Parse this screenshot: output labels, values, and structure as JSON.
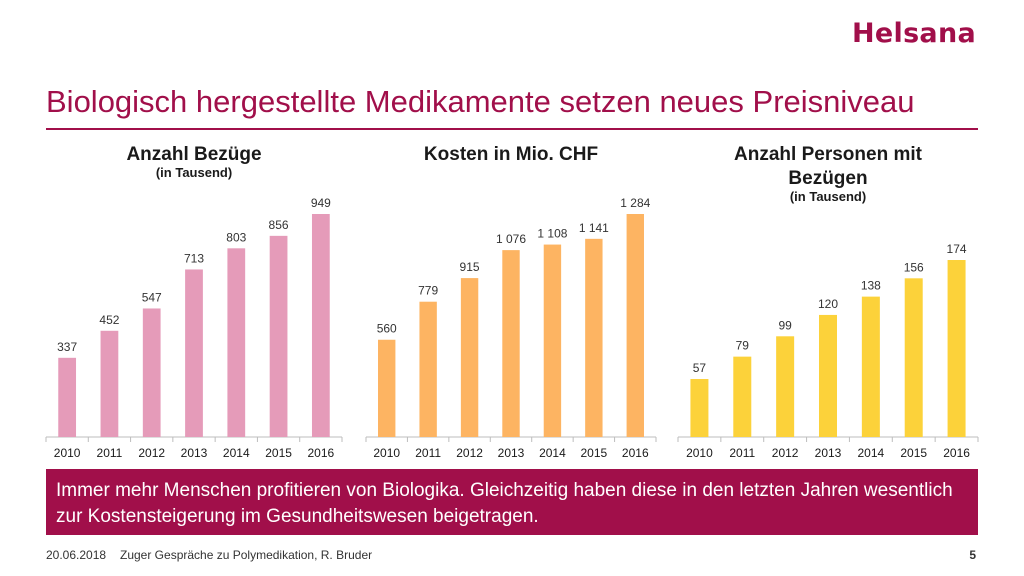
{
  "brand": {
    "logo_text": "Helsana"
  },
  "slide": {
    "title": "Biologisch hergestellte Medikamente setzen neues Preisniveau",
    "message": "Immer mehr Menschen profitieren von Biologika. Gleichzeitig haben diese in den letzten Jahren wesentlich zur Kostensteigerung im Gesundheitswesen beigetragen.",
    "footer": {
      "date": "20.06.2018",
      "text": "Zuger Gespräche zu Polymedikation, R. Bruder",
      "page": "5"
    }
  },
  "colors": {
    "accent": "#a10f4a",
    "pink": "#e59bb9",
    "orange": "#fdb462",
    "yellow": "#fcd23a"
  },
  "chart_data": [
    {
      "type": "bar",
      "title": [
        "Anzahl Bezüge"
      ],
      "subtitle": "(in Tausend)",
      "categories": [
        "2010",
        "2011",
        "2012",
        "2013",
        "2014",
        "2015",
        "2016"
      ],
      "values": [
        337,
        452,
        547,
        713,
        803,
        856,
        949
      ],
      "value_labels": [
        "337",
        "452",
        "547",
        "713",
        "803",
        "856",
        "949"
      ],
      "color": "#e59bb9",
      "ylim": [
        0,
        949
      ],
      "grid": false,
      "legend": "none"
    },
    {
      "type": "bar",
      "title": [
        "Kosten in Mio. CHF"
      ],
      "subtitle": "",
      "categories": [
        "2010",
        "2011",
        "2012",
        "2013",
        "2014",
        "2015",
        "2016"
      ],
      "values": [
        560,
        779,
        915,
        1076,
        1108,
        1141,
        1284
      ],
      "value_labels": [
        "560",
        "779",
        "915",
        "1 076",
        "1 108",
        "1 141",
        "1 284"
      ],
      "color": "#fdb462",
      "ylim": [
        0,
        1284
      ],
      "grid": false,
      "legend": "none"
    },
    {
      "type": "bar",
      "title": [
        "Anzahl Personen mit",
        "Bezügen"
      ],
      "subtitle": "(in Tausend)",
      "categories": [
        "2010",
        "2011",
        "2012",
        "2013",
        "2014",
        "2015",
        "2016"
      ],
      "values": [
        57,
        79,
        99,
        120,
        138,
        156,
        174
      ],
      "value_labels": [
        "57",
        "79",
        "99",
        "120",
        "138",
        "156",
        "174"
      ],
      "color": "#fcd23a",
      "ylim": [
        0,
        174
      ],
      "grid": false,
      "legend": "none"
    }
  ]
}
